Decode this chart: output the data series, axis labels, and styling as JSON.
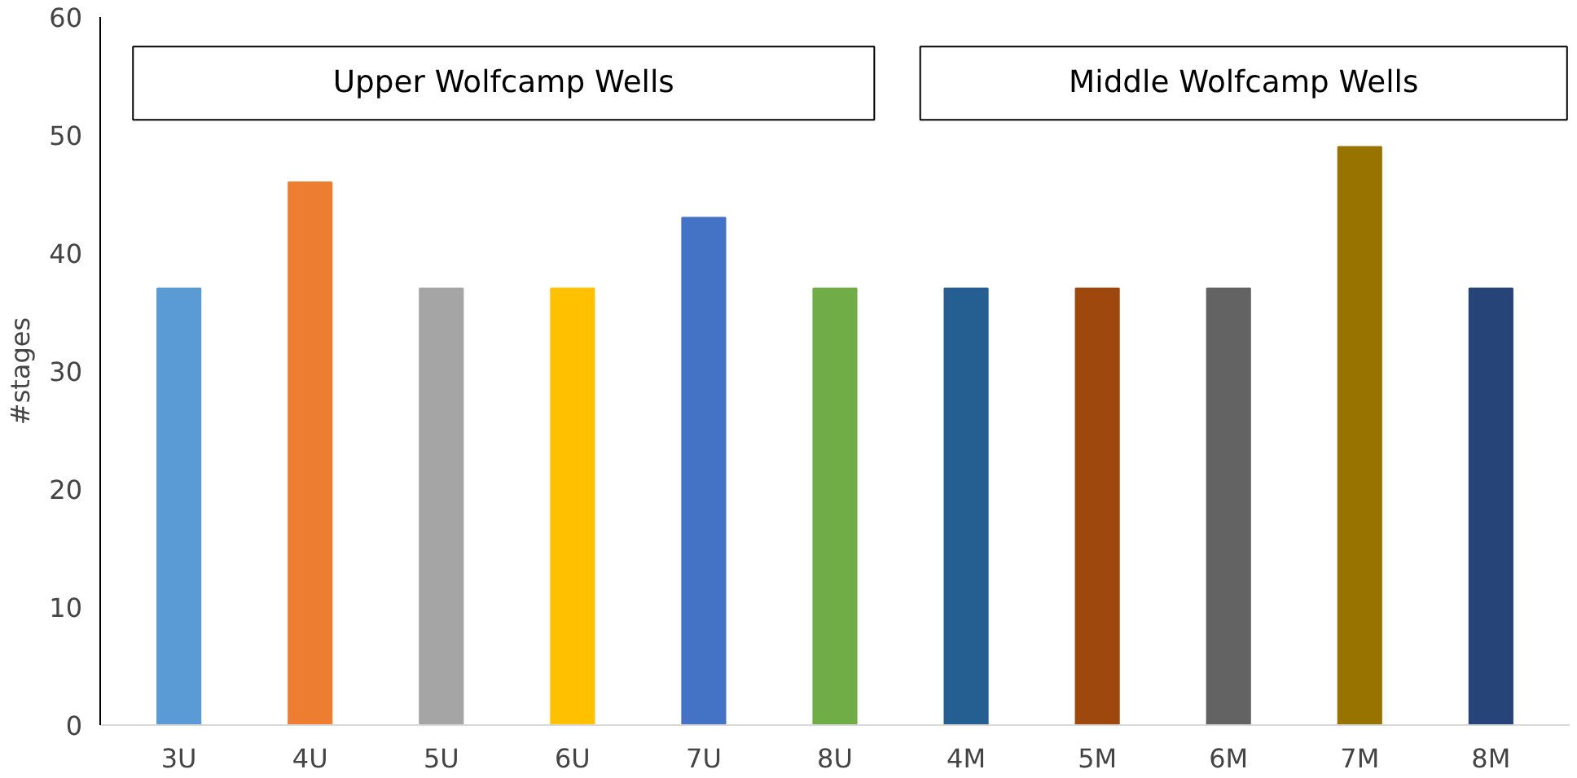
{
  "chart_data": {
    "type": "bar",
    "ylabel": "#stages",
    "categories": [
      "3U",
      "4U",
      "5U",
      "6U",
      "7U",
      "8U",
      "4M",
      "5M",
      "6M",
      "7M",
      "8M"
    ],
    "values": [
      37,
      46,
      37,
      37,
      43,
      37,
      37,
      37,
      37,
      49,
      37
    ],
    "colors": [
      "#5b9bd5",
      "#ed7d31",
      "#a5a5a5",
      "#ffc000",
      "#4472c4",
      "#70ad47",
      "#255e91",
      "#9e480e",
      "#636363",
      "#997300",
      "#264478"
    ],
    "ylim": [
      0,
      60
    ],
    "yticks": [
      0,
      10,
      20,
      30,
      40,
      50,
      60
    ],
    "grid": false,
    "annotations": [
      "Upper Wolfcamp Wells",
      "Middle Wolfcamp Wells"
    ]
  }
}
